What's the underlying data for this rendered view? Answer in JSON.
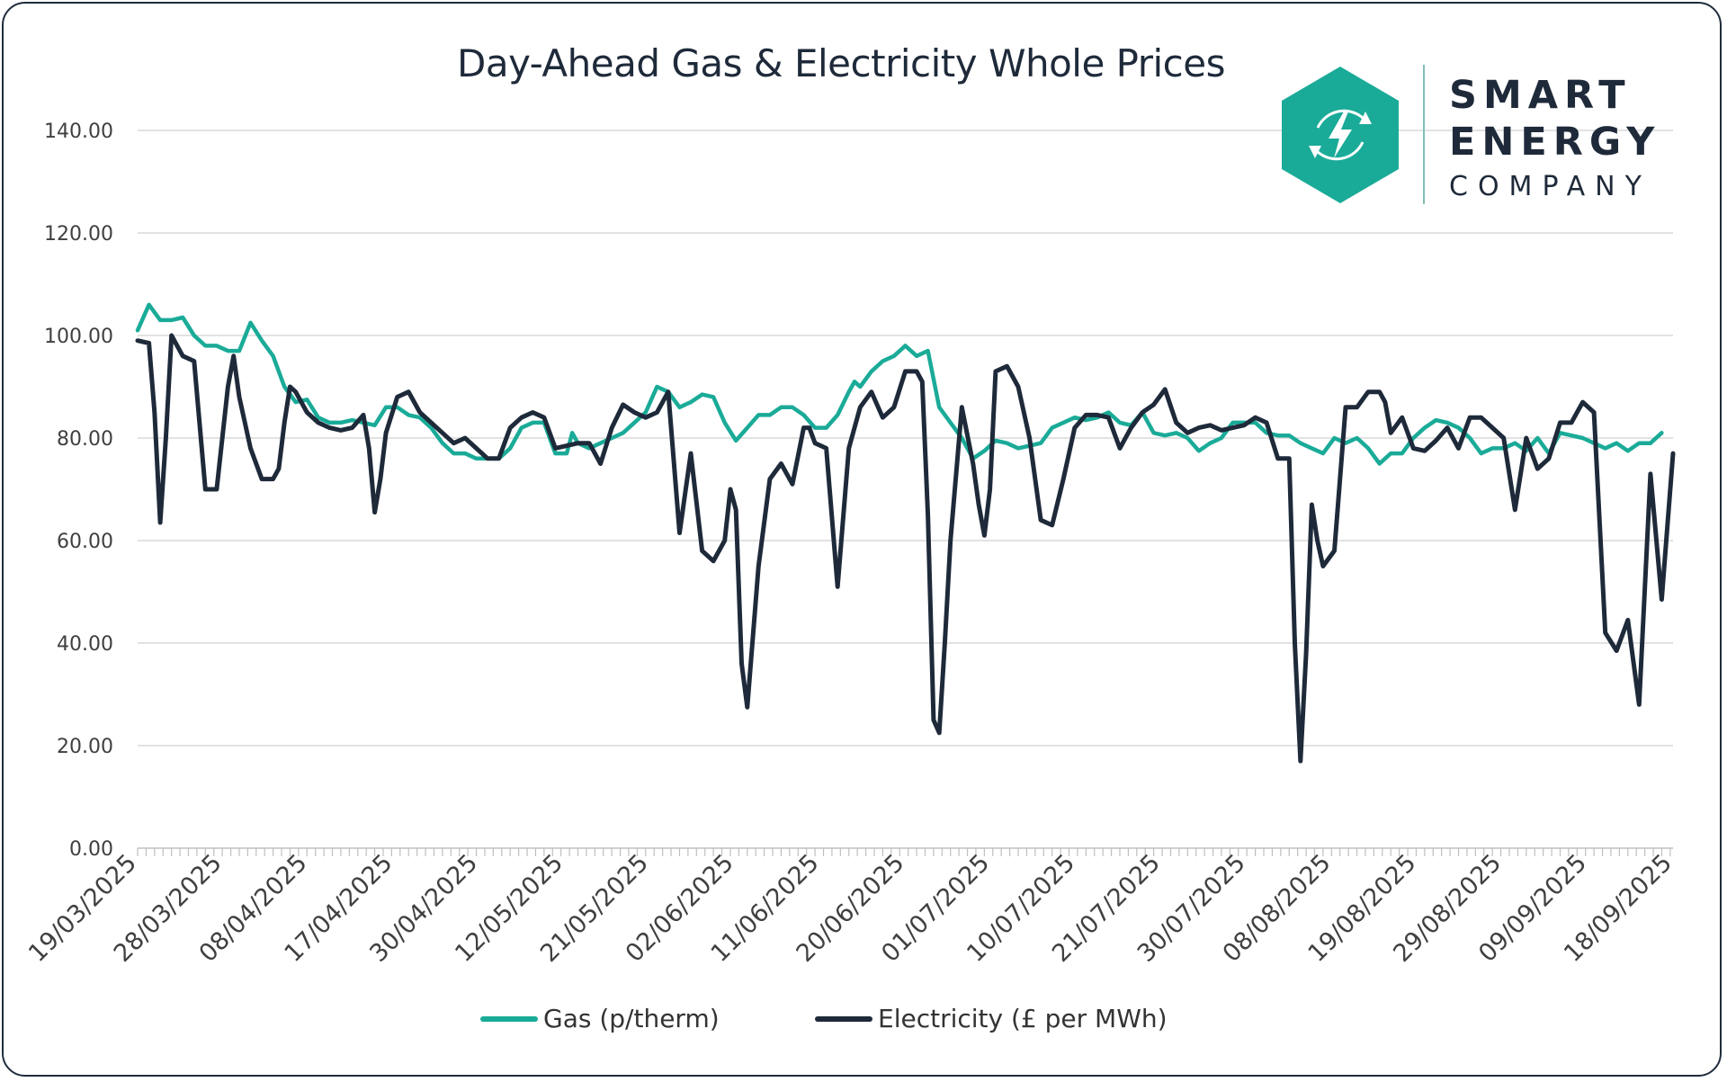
{
  "brand": {
    "line1": "SMART",
    "line2": "ENERGY",
    "line3": "COMPANY",
    "accent": "#1aab98",
    "dark": "#1e2a3a"
  },
  "chart_data": {
    "type": "line",
    "title": "Day-Ahead Gas & Electricity Whole Prices",
    "xlabel": "",
    "ylabel": "",
    "ylim": [
      0,
      140
    ],
    "yticks": [
      "0.00",
      "20.00",
      "40.00",
      "60.00",
      "80.00",
      "100.00",
      "120.00",
      "140.00"
    ],
    "xtick_labels": [
      "19/03/2025",
      "28/03/2025",
      "08/04/2025",
      "17/04/2025",
      "30/04/2025",
      "12/05/2025",
      "21/05/2025",
      "02/06/2025",
      "11/06/2025",
      "20/06/2025",
      "01/07/2025",
      "10/07/2025",
      "21/07/2025",
      "30/07/2025",
      "08/08/2025",
      "19/08/2025",
      "29/08/2025",
      "09/09/2025",
      "18/09/2025"
    ],
    "n_points": 182,
    "legend_position": "bottom",
    "grid": true,
    "series": [
      {
        "name": "Gas (p/therm)",
        "color": "#1aab98",
        "points": [
          [
            0,
            101
          ],
          [
            2,
            106
          ],
          [
            4,
            103
          ],
          [
            6,
            103
          ],
          [
            8,
            103.5
          ],
          [
            10,
            100
          ],
          [
            12,
            98
          ],
          [
            14,
            98
          ],
          [
            16,
            97
          ],
          [
            18,
            97
          ],
          [
            20,
            102.5
          ],
          [
            22,
            99
          ],
          [
            24,
            96
          ],
          [
            26,
            90
          ],
          [
            28,
            87
          ],
          [
            30,
            87.5
          ],
          [
            32,
            84
          ],
          [
            34,
            83
          ],
          [
            36,
            83
          ],
          [
            38,
            83.5
          ],
          [
            40,
            83
          ],
          [
            42,
            82.5
          ],
          [
            44,
            86
          ],
          [
            46,
            86
          ],
          [
            48,
            84.5
          ],
          [
            50,
            84
          ],
          [
            52,
            82
          ],
          [
            54,
            79
          ],
          [
            56,
            77
          ],
          [
            58,
            77
          ],
          [
            60,
            76
          ],
          [
            62,
            76
          ],
          [
            64,
            76
          ],
          [
            66,
            78
          ],
          [
            68,
            82
          ],
          [
            70,
            83
          ],
          [
            72,
            83
          ],
          [
            74,
            77
          ],
          [
            76,
            77
          ],
          [
            77,
            81
          ],
          [
            78,
            79
          ],
          [
            80,
            78
          ],
          [
            82,
            79
          ],
          [
            84,
            80
          ],
          [
            86,
            81
          ],
          [
            88,
            83
          ],
          [
            90,
            85
          ],
          [
            92,
            90
          ],
          [
            94,
            89
          ],
          [
            96,
            86
          ],
          [
            98,
            87
          ],
          [
            100,
            88.5
          ],
          [
            102,
            88
          ],
          [
            104,
            83
          ],
          [
            106,
            79.5
          ],
          [
            108,
            82
          ],
          [
            110,
            84.5
          ],
          [
            112,
            84.5
          ],
          [
            114,
            86
          ],
          [
            116,
            86
          ],
          [
            118,
            84.5
          ],
          [
            120,
            82
          ],
          [
            122,
            82
          ],
          [
            124,
            84.5
          ],
          [
            126,
            89
          ],
          [
            127,
            91
          ],
          [
            128,
            90
          ],
          [
            130,
            93
          ],
          [
            132,
            95
          ],
          [
            134,
            96
          ],
          [
            136,
            98
          ],
          [
            138,
            96
          ],
          [
            140,
            97
          ],
          [
            142,
            86
          ],
          [
            144,
            83
          ],
          [
            146,
            80
          ],
          [
            148,
            76
          ],
          [
            150,
            77.5
          ],
          [
            152,
            79.5
          ],
          [
            154,
            79
          ],
          [
            156,
            78
          ],
          [
            158,
            78.5
          ],
          [
            160,
            79
          ],
          [
            162,
            82
          ],
          [
            164,
            83
          ],
          [
            166,
            84
          ],
          [
            168,
            83.5
          ],
          [
            170,
            84
          ],
          [
            172,
            85
          ],
          [
            174,
            83
          ],
          [
            176,
            82.5
          ],
          [
            178,
            85
          ],
          [
            180,
            81
          ],
          [
            182,
            80.5
          ],
          [
            184,
            81
          ],
          [
            186,
            80
          ],
          [
            188,
            77.5
          ],
          [
            190,
            79
          ],
          [
            192,
            80
          ],
          [
            194,
            83
          ],
          [
            196,
            83
          ],
          [
            198,
            83
          ],
          [
            200,
            81
          ],
          [
            202,
            80.5
          ],
          [
            204,
            80.5
          ],
          [
            206,
            79
          ],
          [
            208,
            78
          ],
          [
            210,
            77
          ],
          [
            212,
            80
          ],
          [
            214,
            79
          ],
          [
            216,
            80
          ],
          [
            218,
            78
          ],
          [
            220,
            75
          ],
          [
            222,
            77
          ],
          [
            224,
            77
          ],
          [
            226,
            80
          ],
          [
            228,
            82
          ],
          [
            230,
            83.5
          ],
          [
            232,
            83
          ],
          [
            234,
            82
          ],
          [
            236,
            80
          ],
          [
            238,
            77
          ],
          [
            240,
            78
          ],
          [
            242,
            78
          ],
          [
            244,
            79
          ],
          [
            246,
            77.5
          ],
          [
            248,
            80
          ],
          [
            250,
            77
          ],
          [
            252,
            81
          ],
          [
            254,
            80.5
          ],
          [
            256,
            80
          ],
          [
            258,
            79
          ],
          [
            260,
            78
          ],
          [
            262,
            79
          ],
          [
            264,
            77.5
          ],
          [
            266,
            79
          ],
          [
            268,
            79
          ],
          [
            270,
            81
          ]
        ]
      },
      {
        "name": "Electricity (£ per MWh)",
        "color": "#1e2a3a",
        "points": [
          [
            0,
            99
          ],
          [
            2,
            98.5
          ],
          [
            3,
            85
          ],
          [
            4,
            63.5
          ],
          [
            5,
            80
          ],
          [
            6,
            100
          ],
          [
            8,
            96
          ],
          [
            10,
            95
          ],
          [
            12,
            70
          ],
          [
            14,
            70
          ],
          [
            16,
            90
          ],
          [
            17,
            96
          ],
          [
            18,
            88
          ],
          [
            20,
            78
          ],
          [
            22,
            72
          ],
          [
            24,
            72
          ],
          [
            25,
            74
          ],
          [
            26,
            83
          ],
          [
            27,
            90
          ],
          [
            28,
            89
          ],
          [
            30,
            85
          ],
          [
            32,
            83
          ],
          [
            34,
            82
          ],
          [
            36,
            81.5
          ],
          [
            38,
            82
          ],
          [
            40,
            84.5
          ],
          [
            41,
            78
          ],
          [
            42,
            65.5
          ],
          [
            43,
            72
          ],
          [
            44,
            81
          ],
          [
            46,
            88
          ],
          [
            48,
            89
          ],
          [
            50,
            85
          ],
          [
            52,
            83
          ],
          [
            54,
            81
          ],
          [
            56,
            79
          ],
          [
            58,
            80
          ],
          [
            60,
            78
          ],
          [
            62,
            76
          ],
          [
            64,
            76
          ],
          [
            66,
            82
          ],
          [
            68,
            84
          ],
          [
            70,
            85
          ],
          [
            72,
            84
          ],
          [
            74,
            78
          ],
          [
            76,
            78.5
          ],
          [
            78,
            79
          ],
          [
            80,
            79
          ],
          [
            82,
            75
          ],
          [
            84,
            82
          ],
          [
            86,
            86.5
          ],
          [
            88,
            85
          ],
          [
            90,
            84
          ],
          [
            92,
            85
          ],
          [
            94,
            89
          ],
          [
            96,
            61.5
          ],
          [
            98,
            77
          ],
          [
            100,
            58
          ],
          [
            102,
            56
          ],
          [
            104,
            60
          ],
          [
            105,
            70
          ],
          [
            106,
            66
          ],
          [
            107,
            36
          ],
          [
            108,
            27.5
          ],
          [
            110,
            55
          ],
          [
            112,
            72
          ],
          [
            114,
            75
          ],
          [
            116,
            71
          ],
          [
            118,
            82
          ],
          [
            119,
            82
          ],
          [
            120,
            79
          ],
          [
            122,
            78
          ],
          [
            124,
            51
          ],
          [
            126,
            78
          ],
          [
            128,
            86
          ],
          [
            130,
            89
          ],
          [
            132,
            84
          ],
          [
            134,
            86
          ],
          [
            136,
            93
          ],
          [
            138,
            93
          ],
          [
            139,
            91
          ],
          [
            140,
            65
          ],
          [
            141,
            25
          ],
          [
            142,
            22.5
          ],
          [
            143,
            40
          ],
          [
            144,
            60
          ],
          [
            146,
            86
          ],
          [
            148,
            75
          ],
          [
            149,
            67
          ],
          [
            150,
            61
          ],
          [
            151,
            70
          ],
          [
            152,
            93
          ],
          [
            154,
            94
          ],
          [
            156,
            90
          ],
          [
            158,
            80
          ],
          [
            160,
            64
          ],
          [
            162,
            63
          ],
          [
            164,
            72
          ],
          [
            166,
            82
          ],
          [
            168,
            84.5
          ],
          [
            170,
            84.5
          ],
          [
            172,
            84
          ],
          [
            174,
            78
          ],
          [
            176,
            82
          ],
          [
            178,
            85
          ],
          [
            180,
            86.5
          ],
          [
            182,
            89.5
          ],
          [
            184,
            83
          ],
          [
            186,
            81
          ],
          [
            188,
            82
          ],
          [
            190,
            82.5
          ],
          [
            192,
            81.5
          ],
          [
            194,
            82
          ],
          [
            196,
            82.5
          ],
          [
            198,
            84
          ],
          [
            200,
            83
          ],
          [
            202,
            76
          ],
          [
            204,
            76
          ],
          [
            205,
            40
          ],
          [
            206,
            17
          ],
          [
            207,
            38
          ],
          [
            208,
            67
          ],
          [
            209,
            60
          ],
          [
            210,
            55
          ],
          [
            212,
            58
          ],
          [
            214,
            86
          ],
          [
            216,
            86
          ],
          [
            218,
            89
          ],
          [
            220,
            89
          ],
          [
            221,
            87
          ],
          [
            222,
            81
          ],
          [
            224,
            84
          ],
          [
            226,
            78
          ],
          [
            228,
            77.5
          ],
          [
            230,
            79.5
          ],
          [
            232,
            82
          ],
          [
            234,
            78
          ],
          [
            236,
            84
          ],
          [
            238,
            84
          ],
          [
            240,
            82
          ],
          [
            242,
            80
          ],
          [
            244,
            66
          ],
          [
            246,
            80
          ],
          [
            248,
            74
          ],
          [
            250,
            76
          ],
          [
            252,
            83
          ],
          [
            254,
            83
          ],
          [
            256,
            87
          ],
          [
            258,
            85
          ],
          [
            260,
            42
          ],
          [
            262,
            38.5
          ],
          [
            264,
            44.5
          ],
          [
            266,
            28
          ],
          [
            268,
            73
          ],
          [
            270,
            48.5
          ],
          [
            272,
            77
          ]
        ]
      }
    ]
  }
}
